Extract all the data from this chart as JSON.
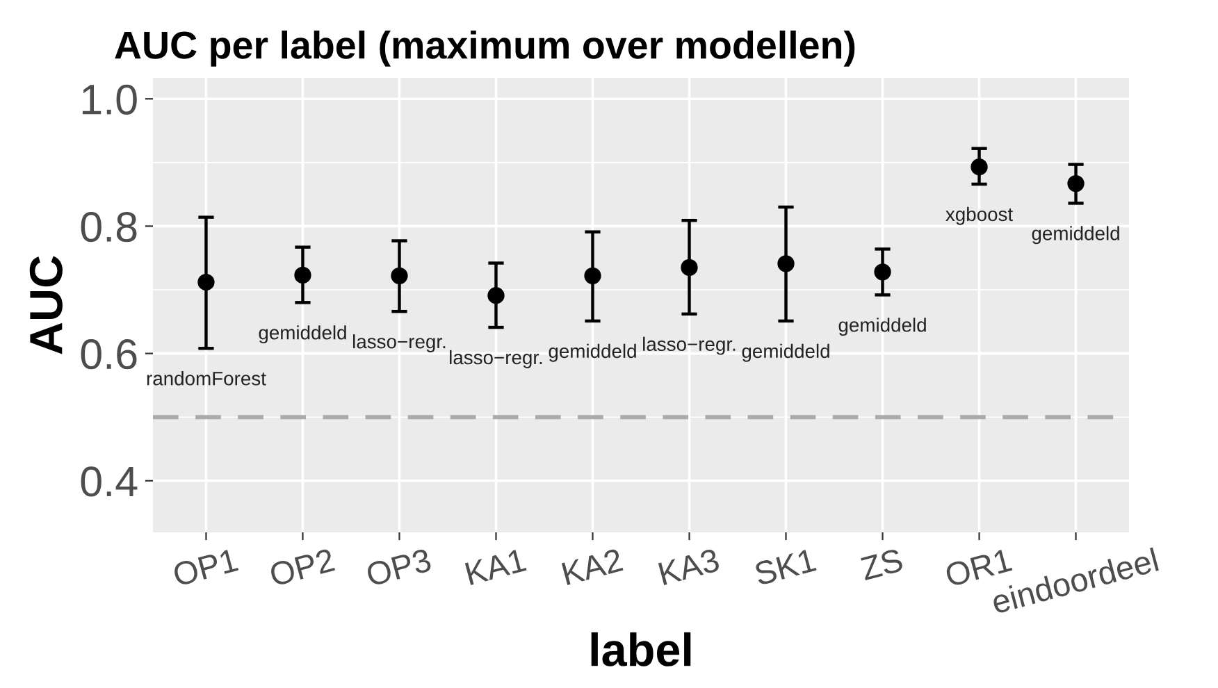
{
  "chart_data": {
    "type": "scatter",
    "title": "AUC per label (maximum over modellen)",
    "xlabel": "label",
    "ylabel": "AUC",
    "categories": [
      "OP1",
      "OP2",
      "OP3",
      "KA1",
      "KA2",
      "KA3",
      "SK1",
      "ZS",
      "OR1",
      "eindoordeel"
    ],
    "series": [
      {
        "color": "#000000",
        "values": [
          0.712,
          0.723,
          0.722,
          0.691,
          0.722,
          0.735,
          0.741,
          0.728,
          0.893,
          0.867
        ],
        "errors": [
          [
            0.608,
            0.814
          ],
          [
            0.68,
            0.767
          ],
          [
            0.666,
            0.777
          ],
          [
            0.641,
            0.742
          ],
          [
            0.651,
            0.791
          ],
          [
            0.662,
            0.809
          ],
          [
            0.651,
            0.83
          ],
          [
            0.692,
            0.764
          ],
          [
            0.866,
            0.922
          ],
          [
            0.836,
            0.897
          ]
        ]
      }
    ],
    "ylim": [
      0.319,
      1.033
    ],
    "yticks": [
      0.4,
      0.6,
      0.8,
      {
        "value": 1.0,
        "label": "1.0"
      }
    ],
    "grid": true,
    "marker": "circle",
    "ref_lines": [
      {
        "axis": "y",
        "value": 0.5,
        "color": "#aaaaaa",
        "line_style": "dashed"
      }
    ],
    "annotations": [
      "randomForest",
      "gemiddeld",
      "lasso−regr.",
      "lasso−regr.",
      "gemiddeld",
      "lasso−regr.",
      "gemiddeld",
      "gemiddeld",
      "xgboost",
      "gemiddeld"
    ]
  }
}
